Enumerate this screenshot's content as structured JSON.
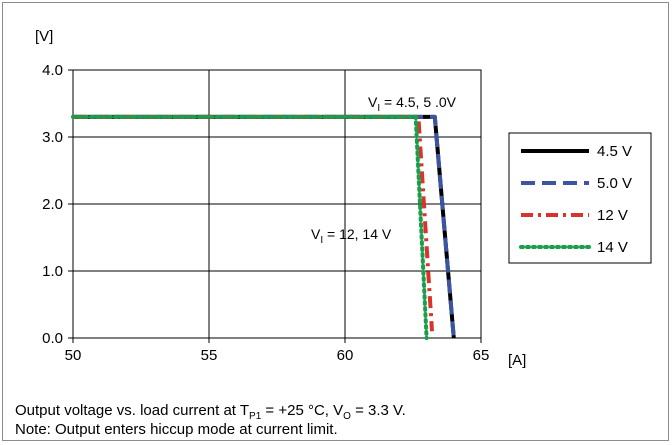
{
  "chart_data": {
    "type": "line",
    "ylabel": "[V]",
    "xlabel": "[A]",
    "xlim": [
      50,
      65
    ],
    "ylim": [
      0,
      4
    ],
    "x_ticks": [
      "50",
      "55",
      "60",
      "65"
    ],
    "y_ticks": [
      "0.0",
      "1.0",
      "2.0",
      "3.0",
      "4.0"
    ],
    "grid": true,
    "legend_position": "right",
    "series": [
      {
        "name": "4.5 V",
        "color": "#000000",
        "dash": "solid",
        "points": [
          [
            50,
            3.3
          ],
          [
            63.3,
            3.3
          ],
          [
            64.0,
            0.0
          ]
        ]
      },
      {
        "name": "5.0 V",
        "color": "#3b55a0",
        "dash": "dash",
        "points": [
          [
            50,
            3.3
          ],
          [
            63.3,
            3.3
          ],
          [
            64.0,
            0.0
          ]
        ]
      },
      {
        "name": "12 V",
        "color": "#d9342b",
        "dash": "dashdot",
        "points": [
          [
            50,
            3.3
          ],
          [
            62.7,
            3.3
          ],
          [
            63.2,
            0.1
          ]
        ]
      },
      {
        "name": "14 V",
        "color": "#1a9e4b",
        "dash": "dot",
        "points": [
          [
            50,
            3.3
          ],
          [
            62.6,
            3.3
          ],
          [
            63.0,
            0.0
          ]
        ]
      }
    ],
    "annotations": [
      {
        "base": "V",
        "sub": "I",
        "text": " = 4.5, 5 .0V"
      },
      {
        "base": "V",
        "sub": "I",
        "text": " = 12, 14 V"
      }
    ]
  },
  "caption": {
    "line1_a": "Output voltage vs. load current at T",
    "line1_sub1": "P1",
    "line1_b": " = +25 °C, V",
    "line1_sub2": "O",
    "line1_c": " = 3.3 V.",
    "line2": "Note: Output enters hiccup mode at current limit."
  }
}
